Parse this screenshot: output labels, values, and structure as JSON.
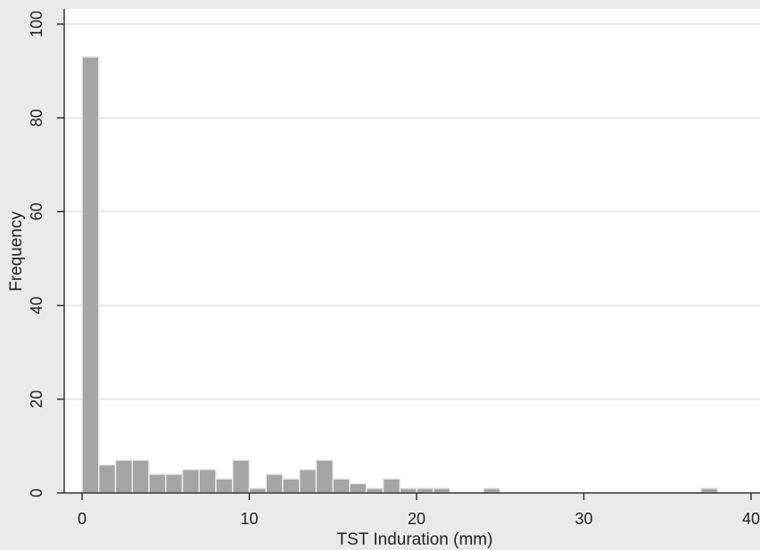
{
  "colors": {
    "frame_background": "#eaeaea",
    "plot_background": "#ffffff",
    "bar_fill": "#a5a5a5",
    "bar_stroke": "#ebebeb",
    "gridline": "#e6e6e6",
    "axis": "#333333",
    "text": "#222222"
  },
  "chart_data": {
    "type": "bar",
    "subtype": "histogram",
    "title": "",
    "xlabel": "TST Induration (mm)",
    "ylabel": "Frequency",
    "xlim": [
      0,
      40
    ],
    "ylim": [
      0,
      100
    ],
    "xticks": [
      0,
      10,
      20,
      30,
      40
    ],
    "yticks": [
      0,
      20,
      40,
      60,
      80,
      100
    ],
    "x_tick_labels": [
      "0",
      "10",
      "20",
      "30",
      "40"
    ],
    "y_tick_labels": [
      "0",
      "20",
      "40",
      "60",
      "80",
      "100"
    ],
    "grid": true,
    "legend": "none",
    "bin_width": 1,
    "bins": [
      {
        "x0": 0,
        "x1": 1,
        "count": 93
      },
      {
        "x0": 1,
        "x1": 2,
        "count": 6
      },
      {
        "x0": 2,
        "x1": 3,
        "count": 7
      },
      {
        "x0": 3,
        "x1": 4,
        "count": 7
      },
      {
        "x0": 4,
        "x1": 5,
        "count": 4
      },
      {
        "x0": 5,
        "x1": 6,
        "count": 4
      },
      {
        "x0": 6,
        "x1": 7,
        "count": 5
      },
      {
        "x0": 7,
        "x1": 8,
        "count": 5
      },
      {
        "x0": 8,
        "x1": 9,
        "count": 3
      },
      {
        "x0": 9,
        "x1": 10,
        "count": 7
      },
      {
        "x0": 10,
        "x1": 11,
        "count": 1
      },
      {
        "x0": 11,
        "x1": 12,
        "count": 4
      },
      {
        "x0": 12,
        "x1": 13,
        "count": 3
      },
      {
        "x0": 13,
        "x1": 14,
        "count": 5
      },
      {
        "x0": 14,
        "x1": 15,
        "count": 7
      },
      {
        "x0": 15,
        "x1": 16,
        "count": 3
      },
      {
        "x0": 16,
        "x1": 17,
        "count": 2
      },
      {
        "x0": 17,
        "x1": 18,
        "count": 1
      },
      {
        "x0": 18,
        "x1": 19,
        "count": 3
      },
      {
        "x0": 19,
        "x1": 20,
        "count": 1
      },
      {
        "x0": 20,
        "x1": 21,
        "count": 1
      },
      {
        "x0": 21,
        "x1": 22,
        "count": 1
      },
      {
        "x0": 24,
        "x1": 25,
        "count": 1
      },
      {
        "x0": 37,
        "x1": 38,
        "count": 1
      }
    ]
  }
}
